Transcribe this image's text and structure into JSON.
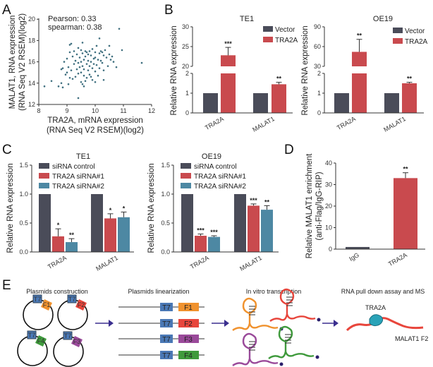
{
  "panel_labels": [
    "A",
    "B",
    "C",
    "D",
    "E"
  ],
  "colors": {
    "control": "#4a4c59",
    "red": "#c94a4e",
    "blue": "#4d88a3",
    "dot": "#3f6f7f",
    "T7": "#4a78b5",
    "F1": "#f0922e",
    "F2": "#e8463c",
    "F3": "#9a4a9a",
    "F4": "#3f9a3c",
    "protein": "#2aa3b8",
    "arrow": "#3b2f8f"
  },
  "chart_data": [
    {
      "panel": "A",
      "type": "scatter",
      "xlabel": [
        "TRA2A, mRNA expression",
        "(RNA Seq V2 RSEM)(log2)"
      ],
      "ylabel": [
        "MALAT1, RNA expression",
        "(RNA Seq V2 RSEM)(log2)"
      ],
      "xlim": [
        8,
        12
      ],
      "ylim": [
        12,
        20
      ],
      "xticks": [
        8,
        9,
        10,
        11,
        12
      ],
      "yticks": [
        12,
        14,
        16,
        18,
        20
      ],
      "annotations": [
        "Pearson: 0.33",
        "spearman: 0.38"
      ],
      "points": [
        [
          8.2,
          13.7
        ],
        [
          8.45,
          14.2
        ],
        [
          8.7,
          13.7
        ],
        [
          8.8,
          14.0
        ],
        [
          8.85,
          13.6
        ],
        [
          9.4,
          12.6
        ],
        [
          10.85,
          19.1
        ],
        [
          10.15,
          18.2
        ],
        [
          9.55,
          17.8
        ],
        [
          10.5,
          17.5
        ],
        [
          10.95,
          17.1
        ],
        [
          11.65,
          15.9
        ],
        [
          10.75,
          15.5
        ],
        [
          10.3,
          14.3
        ],
        [
          9.1,
          17.6
        ],
        [
          9.15,
          17.7
        ],
        [
          9.05,
          13.9
        ],
        [
          9.6,
          13.7
        ],
        [
          9.55,
          13.9
        ],
        [
          9.5,
          14.1
        ],
        [
          8.8,
          15.3
        ],
        [
          8.85,
          15.4
        ],
        [
          8.9,
          16.0
        ],
        [
          8.95,
          14.8
        ],
        [
          9.0,
          15.0
        ],
        [
          9.0,
          16.3
        ],
        [
          9.05,
          15.5
        ],
        [
          9.1,
          14.5
        ],
        [
          9.1,
          16.9
        ],
        [
          9.15,
          15.2
        ],
        [
          9.2,
          16.5
        ],
        [
          9.2,
          14.4
        ],
        [
          9.25,
          15.8
        ],
        [
          9.3,
          16.1
        ],
        [
          9.3,
          14.6
        ],
        [
          9.35,
          15.3
        ],
        [
          9.35,
          16.7
        ],
        [
          9.4,
          15.9
        ],
        [
          9.4,
          14.9
        ],
        [
          9.45,
          16.4
        ],
        [
          9.45,
          15.5
        ],
        [
          9.5,
          17.1
        ],
        [
          9.5,
          15.0
        ],
        [
          9.5,
          16.0
        ],
        [
          9.55,
          16.8
        ],
        [
          9.55,
          15.6
        ],
        [
          9.6,
          16.2
        ],
        [
          9.6,
          14.7
        ],
        [
          9.6,
          15.3
        ],
        [
          9.65,
          17.0
        ],
        [
          9.65,
          16.5
        ],
        [
          9.7,
          15.8
        ],
        [
          9.7,
          14.5
        ],
        [
          9.7,
          16.9
        ],
        [
          9.75,
          16.1
        ],
        [
          9.75,
          15.2
        ],
        [
          9.8,
          17.0
        ],
        [
          9.8,
          15.6
        ],
        [
          9.8,
          14.8
        ],
        [
          9.85,
          16.6
        ],
        [
          9.85,
          16.0
        ],
        [
          9.9,
          15.4
        ],
        [
          9.9,
          17.2
        ],
        [
          9.9,
          14.3
        ],
        [
          9.95,
          16.3
        ],
        [
          9.95,
          15.8
        ],
        [
          10.0,
          16.9
        ],
        [
          10.0,
          15.1
        ],
        [
          10.0,
          16.4
        ],
        [
          10.05,
          17.5
        ],
        [
          10.05,
          15.7
        ],
        [
          10.1,
          16.2
        ],
        [
          10.1,
          14.7
        ],
        [
          10.15,
          16.8
        ],
        [
          10.15,
          15.4
        ],
        [
          10.2,
          17.0
        ],
        [
          10.2,
          16.1
        ],
        [
          10.25,
          15.9
        ],
        [
          10.3,
          16.6
        ],
        [
          10.3,
          15.2
        ],
        [
          10.35,
          17.1
        ],
        [
          10.4,
          16.4
        ],
        [
          10.45,
          15.6
        ],
        [
          10.5,
          16.7
        ],
        [
          10.55,
          16.2
        ],
        [
          10.6,
          16.5
        ],
        [
          10.65,
          16.0
        ],
        [
          9.25,
          17.0
        ],
        [
          9.65,
          14.2
        ],
        [
          9.85,
          14.6
        ],
        [
          10.0,
          14.1
        ],
        [
          9.4,
          17.3
        ],
        [
          10.25,
          16.9
        ],
        [
          9.75,
          16.7
        ]
      ]
    },
    {
      "panel": "B",
      "type": "bar",
      "title": "TE1",
      "ylabel": "Relative RNA expression",
      "categories": [
        "TRA2A",
        "MALAT1"
      ],
      "y_break": {
        "lower": [
          0,
          2
        ],
        "upper": [
          20,
          30
        ]
      },
      "yticks_lower": [
        0,
        1,
        2
      ],
      "yticks_upper": [
        20,
        25,
        30
      ],
      "series": [
        {
          "name": "Vector",
          "values": [
            1,
            1
          ],
          "errors": [
            0,
            0
          ]
        },
        {
          "name": "TRA2A",
          "values": [
            22.8,
            1.45
          ],
          "errors": [
            2.0,
            0.1
          ]
        }
      ],
      "significance": [
        {
          "category": "TRA2A",
          "series": "TRA2A",
          "label": "***"
        },
        {
          "category": "MALAT1",
          "series": "TRA2A",
          "label": "**"
        }
      ],
      "legend": "top-right"
    },
    {
      "panel": "B",
      "type": "bar",
      "title": "OE19",
      "ylabel": "Relative RNA expression",
      "categories": [
        "TRA2A",
        "MALAT1"
      ],
      "y_break": {
        "lower": [
          0,
          2
        ],
        "upper": [
          30,
          90
        ]
      },
      "yticks_lower": [
        0,
        1,
        2
      ],
      "yticks_upper": [
        30,
        60,
        90
      ],
      "series": [
        {
          "name": "Vector",
          "values": [
            1,
            1
          ],
          "errors": [
            0,
            0
          ]
        },
        {
          "name": "TRA2A",
          "values": [
            52,
            1.5
          ],
          "errors": [
            19,
            0.05
          ]
        }
      ],
      "significance": [
        {
          "category": "TRA2A",
          "series": "TRA2A",
          "label": "**"
        },
        {
          "category": "MALAT1",
          "series": "TRA2A",
          "label": "**"
        }
      ],
      "legend": "top-right"
    },
    {
      "panel": "C",
      "type": "bar",
      "title": "TE1",
      "ylabel": "Relative RNA expression",
      "categories": [
        "TRA2A",
        "MALAT1"
      ],
      "ylim": [
        0,
        1.5
      ],
      "yticks": [
        "0.0",
        "0.5",
        "1.0",
        "1.5"
      ],
      "series": [
        {
          "name": "siRNA control",
          "values": [
            1,
            1
          ],
          "errors": [
            0,
            0
          ]
        },
        {
          "name": "TRA2A siRNA#1",
          "values": [
            0.27,
            0.58
          ],
          "errors": [
            0.13,
            0.08
          ]
        },
        {
          "name": "TRA2A siRNA#2",
          "values": [
            0.17,
            0.6
          ],
          "errors": [
            0.06,
            0.09
          ]
        }
      ],
      "significance": [
        [
          "",
          "*",
          "**"
        ],
        [
          "",
          "*",
          "*"
        ]
      ],
      "legend": "top-left"
    },
    {
      "panel": "C",
      "type": "bar",
      "title": "OE19",
      "ylabel": "Relative RNA expression",
      "categories": [
        "TRA2A",
        "MALAT1"
      ],
      "ylim": [
        0,
        1.5
      ],
      "yticks": [
        "0.0",
        "0.5",
        "1.0",
        "1.5"
      ],
      "series": [
        {
          "name": "siRNA control",
          "values": [
            1,
            1
          ],
          "errors": [
            0,
            0
          ]
        },
        {
          "name": "TRA2A siRNA#1",
          "values": [
            0.28,
            0.8
          ],
          "errors": [
            0.03,
            0.03
          ]
        },
        {
          "name": "TRA2A siRNA#2",
          "values": [
            0.26,
            0.73
          ],
          "errors": [
            0.02,
            0.07
          ]
        }
      ],
      "significance": [
        [
          "",
          "***",
          "***"
        ],
        [
          "",
          "***",
          "**"
        ]
      ],
      "legend": "top-left"
    },
    {
      "panel": "D",
      "type": "bar",
      "ylabel": [
        "Relative MALAT1 enrichment",
        "(anti-Flag/IgG-RIP)"
      ],
      "categories": [
        "IgG",
        "TRA2A"
      ],
      "ylim": [
        0,
        40
      ],
      "yticks": [
        0,
        10,
        20,
        30,
        40
      ],
      "values": [
        1,
        33
      ],
      "errors": [
        0,
        2.5
      ],
      "significance": [
        "",
        "**"
      ]
    }
  ],
  "schematic": {
    "steps": [
      "Plasmids construction",
      "Plasmids linearization",
      "In vitro transcription",
      "RNA pull down assay and MS"
    ],
    "promoter": "T7",
    "fragments": [
      "F1",
      "F2",
      "F3",
      "F4"
    ],
    "protein_label": "TRA2A",
    "rna_label": "MALAT1 F2"
  }
}
